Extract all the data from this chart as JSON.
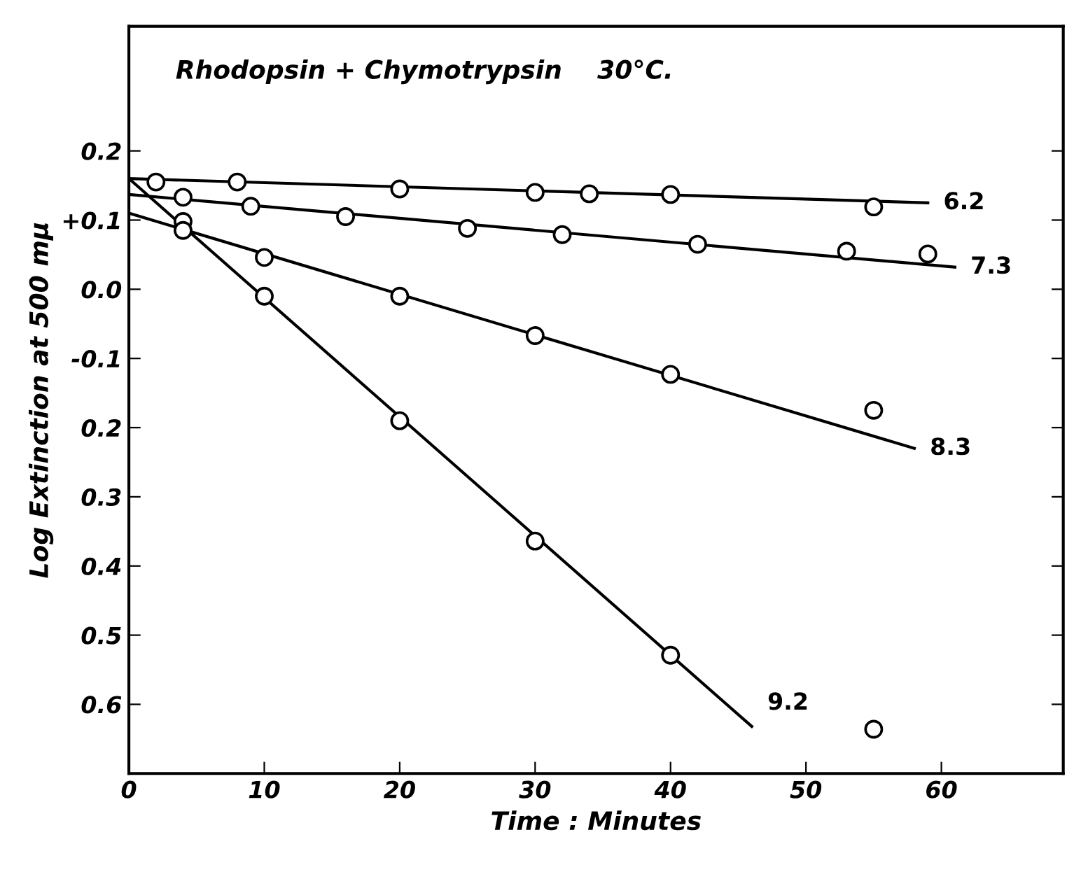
{
  "chart_data": {
    "type": "scatter",
    "title": "Rhodopsin + Chymotrypsin    30°C.",
    "xlabel": "Time : Minutes",
    "ylabel": "Log Extinction at 500 mμ",
    "xlim": [
      0,
      69
    ],
    "ylim": [
      -0.7,
      0.38
    ],
    "xticks": [
      0,
      10,
      20,
      30,
      40,
      50,
      60
    ],
    "yticks": [
      0.2,
      {
        "value": 0.1,
        "label": "+0.1"
      },
      {
        "value": 0,
        "label": "0.0"
      },
      -0.1,
      {
        "value": -0.2,
        "label": "0.2"
      },
      {
        "value": -0.3,
        "label": "0.3"
      },
      {
        "value": -0.4,
        "label": "0.4"
      },
      {
        "value": -0.5,
        "label": "0.5"
      },
      {
        "value": -0.6,
        "label": "0.6"
      }
    ],
    "grid": false,
    "series": [
      {
        "marker": "circle",
        "color": "#000000",
        "x": [
          2,
          8,
          20,
          30,
          34,
          40,
          55
        ],
        "values": [
          0.155,
          0.155,
          0.145,
          0.14,
          0.138,
          0.137,
          0.119
        ]
      },
      {
        "marker": "circle",
        "color": "#000000",
        "x": [
          4,
          9,
          16,
          25,
          32,
          42,
          53,
          59
        ],
        "values": [
          0.133,
          0.12,
          0.105,
          0.088,
          0.079,
          0.065,
          0.055,
          0.051
        ]
      },
      {
        "marker": "circle",
        "color": "#000000",
        "x": [
          4,
          10,
          20,
          30,
          40,
          55
        ],
        "values": [
          0.098,
          0.046,
          -0.01,
          -0.067,
          -0.123,
          -0.175
        ]
      },
      {
        "marker": "circle",
        "color": "#000000",
        "x": [
          4,
          10,
          20,
          30,
          40,
          55
        ],
        "values": [
          0.085,
          -0.01,
          -0.19,
          -0.364,
          -0.529,
          -0.636
        ]
      },
      {
        "type": "line",
        "marker": "none",
        "color": "#000000",
        "x": [
          0,
          59
        ],
        "values": [
          0.16,
          0.125
        ]
      },
      {
        "type": "line",
        "marker": "none",
        "color": "#000000",
        "x": [
          0,
          61
        ],
        "values": [
          0.137,
          0.032
        ]
      },
      {
        "type": "line",
        "marker": "none",
        "color": "#000000",
        "x": [
          0,
          58
        ],
        "values": [
          0.11,
          -0.23
        ]
      },
      {
        "type": "line",
        "marker": "none",
        "color": "#000000",
        "x": [
          0,
          46
        ],
        "values": [
          0.16,
          -0.632
        ]
      }
    ],
    "annotations": [
      "6.2",
      "7.3",
      "8.3",
      "9.2"
    ]
  }
}
